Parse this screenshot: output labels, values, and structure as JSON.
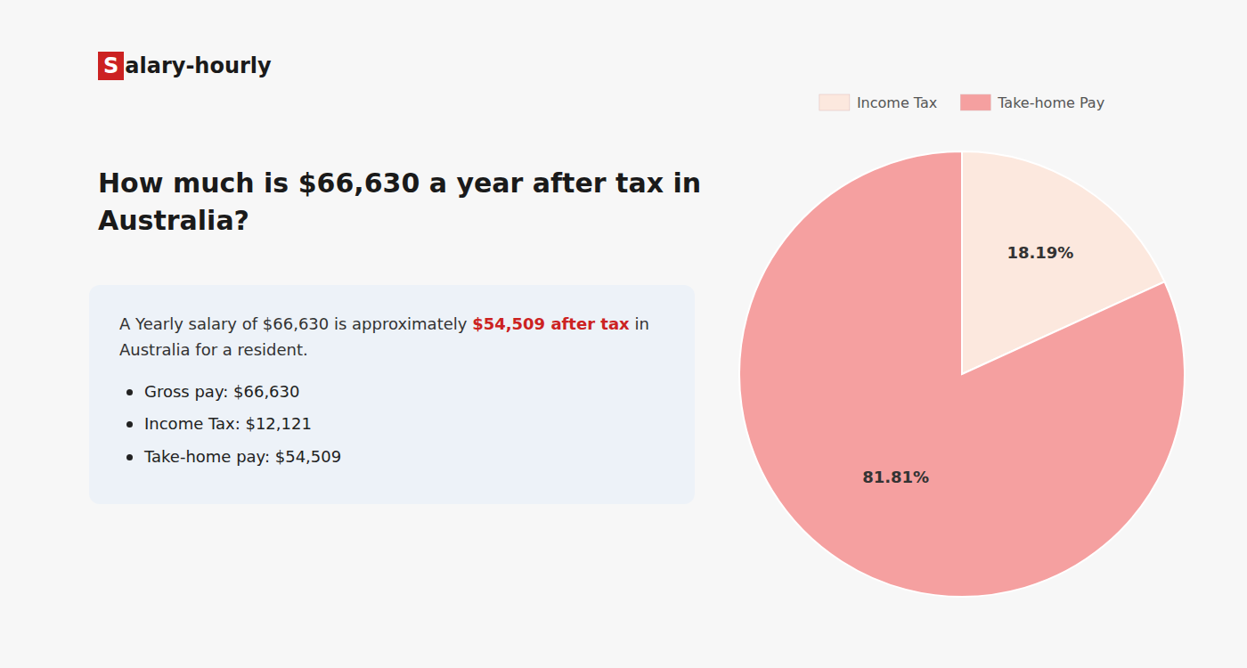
{
  "chart_data": {
    "type": "pie",
    "title": "How much is $66,630 a year after tax in\nAustralia?",
    "categories": [
      "Income Tax",
      "Take-home Pay"
    ],
    "values": [
      18.19,
      81.81
    ],
    "value_labels": [
      "18.19%",
      "81.81%"
    ],
    "colors": [
      "#fce8de",
      "#f5a0a0"
    ],
    "data_labels": true,
    "legend": "top",
    "annotations": [
      {
        "text": "S",
        "color": "#cc2222"
      },
      {
        "text": "alary-hourly"
      },
      {
        "text": "A Yearly salary of $66,630 is approximately "
      },
      {
        "text": "$54,509 after tax",
        "color": "#cc2222"
      },
      {
        "text": " in"
      },
      {
        "text": "Australia for a resident."
      },
      {
        "text": "Gross pay: $66,630"
      },
      {
        "text": "Income Tax: $12,121"
      },
      {
        "text": "Take-home pay: $54,509"
      }
    ]
  }
}
